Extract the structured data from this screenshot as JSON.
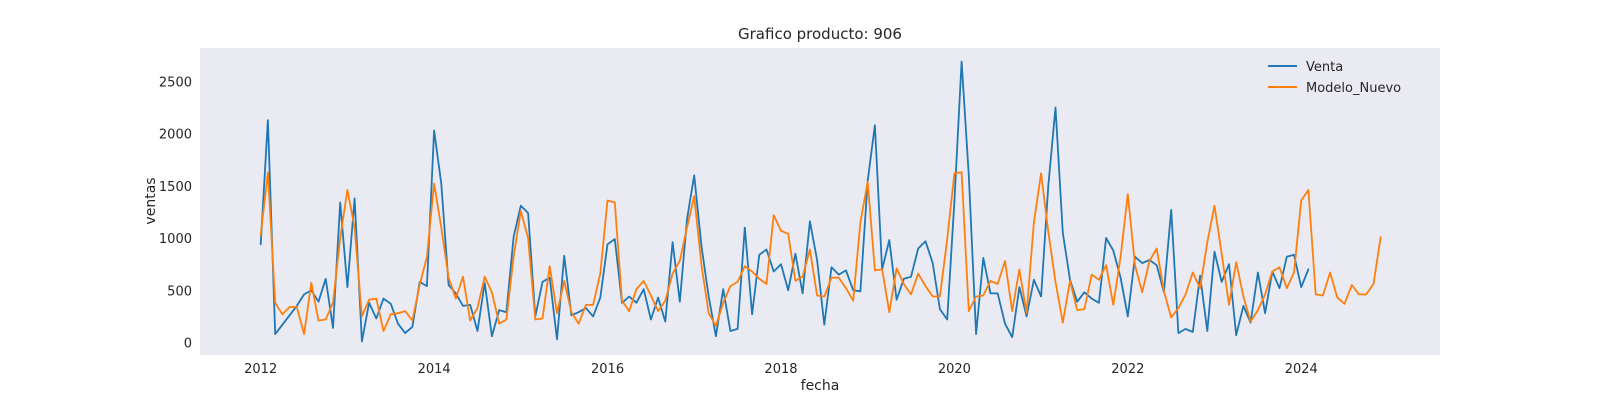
{
  "chart_data": {
    "type": "line",
    "title": "Grafico producto: 906",
    "xlabel": "fecha",
    "ylabel": "ventas",
    "xlim": [
      2011.3,
      2025.6
    ],
    "ylim": [
      -120,
      2820
    ],
    "x_ticks": [
      2012,
      2014,
      2016,
      2018,
      2020,
      2022,
      2024
    ],
    "y_ticks": [
      0,
      500,
      1000,
      1500,
      2000,
      2500
    ],
    "grid": false,
    "legend_position": "top-right",
    "background_color": "#eaeaf2",
    "series": [
      {
        "name": "Venta",
        "color": "#1f77b4",
        "start": 2012.0,
        "step": 0.08333,
        "values": [
          940,
          2130,
          80,
          170,
          260,
          350,
          460,
          500,
          390,
          610,
          140,
          1340,
          530,
          1380,
          10,
          380,
          230,
          420,
          370,
          180,
          90,
          150,
          580,
          540,
          2030,
          1520,
          550,
          470,
          350,
          360,
          110,
          570,
          60,
          310,
          290,
          1010,
          1310,
          1240,
          250,
          580,
          620,
          30,
          830,
          260,
          290,
          330,
          250,
          430,
          940,
          990,
          380,
          440,
          380,
          510,
          220,
          430,
          200,
          960,
          390,
          1180,
          1600,
          920,
          440,
          60,
          510,
          110,
          130,
          1100,
          270,
          840,
          890,
          680,
          750,
          500,
          850,
          470,
          1160,
          790,
          170,
          720,
          650,
          690,
          500,
          490,
          1550,
          2080,
          700,
          980,
          410,
          610,
          630,
          900,
          970,
          760,
          320,
          220,
          1350,
          2690,
          1600,
          80,
          810,
          470,
          470,
          180,
          50,
          530,
          250,
          600,
          440,
          1500,
          2250,
          1050,
          600,
          390,
          480,
          420,
          380,
          1000,
          880,
          620,
          250,
          820,
          760,
          790,
          740,
          480,
          1270,
          90,
          130,
          100,
          640,
          110,
          870,
          580,
          750,
          70,
          350,
          190,
          670,
          280,
          680,
          520,
          820,
          840,
          530,
          700
        ]
      },
      {
        "name": "Modelo_Nuevo",
        "color": "#ff7f0e",
        "start": 2012.0,
        "step": 0.08333,
        "values": [
          1030,
          1630,
          380,
          270,
          340,
          340,
          80,
          570,
          210,
          220,
          380,
          1000,
          1460,
          1100,
          250,
          410,
          420,
          110,
          270,
          280,
          300,
          210,
          550,
          820,
          1520,
          1100,
          620,
          420,
          630,
          210,
          330,
          630,
          480,
          180,
          220,
          820,
          1260,
          1000,
          220,
          230,
          730,
          280,
          590,
          290,
          180,
          360,
          360,
          660,
          1360,
          1340,
          400,
          300,
          510,
          590,
          450,
          300,
          400,
          660,
          780,
          1100,
          1400,
          740,
          280,
          160,
          380,
          540,
          580,
          730,
          680,
          610,
          560,
          1220,
          1070,
          1040,
          590,
          630,
          890,
          450,
          440,
          620,
          620,
          520,
          400,
          1150,
          1540,
          690,
          700,
          290,
          710,
          560,
          460,
          660,
          540,
          440,
          440,
          990,
          1620,
          1630,
          300,
          440,
          450,
          590,
          560,
          780,
          300,
          700,
          280,
          1150,
          1620,
          1060,
          580,
          190,
          590,
          310,
          320,
          650,
          600,
          740,
          360,
          820,
          1420,
          740,
          480,
          780,
          900,
          490,
          240,
          330,
          460,
          670,
          520,
          960,
          1310,
          850,
          360,
          770,
          440,
          200,
          310,
          460,
          680,
          720,
          520,
          670,
          1360,
          1460,
          460,
          450,
          670,
          430,
          370,
          550,
          460,
          460,
          560,
          1010
        ]
      }
    ]
  }
}
